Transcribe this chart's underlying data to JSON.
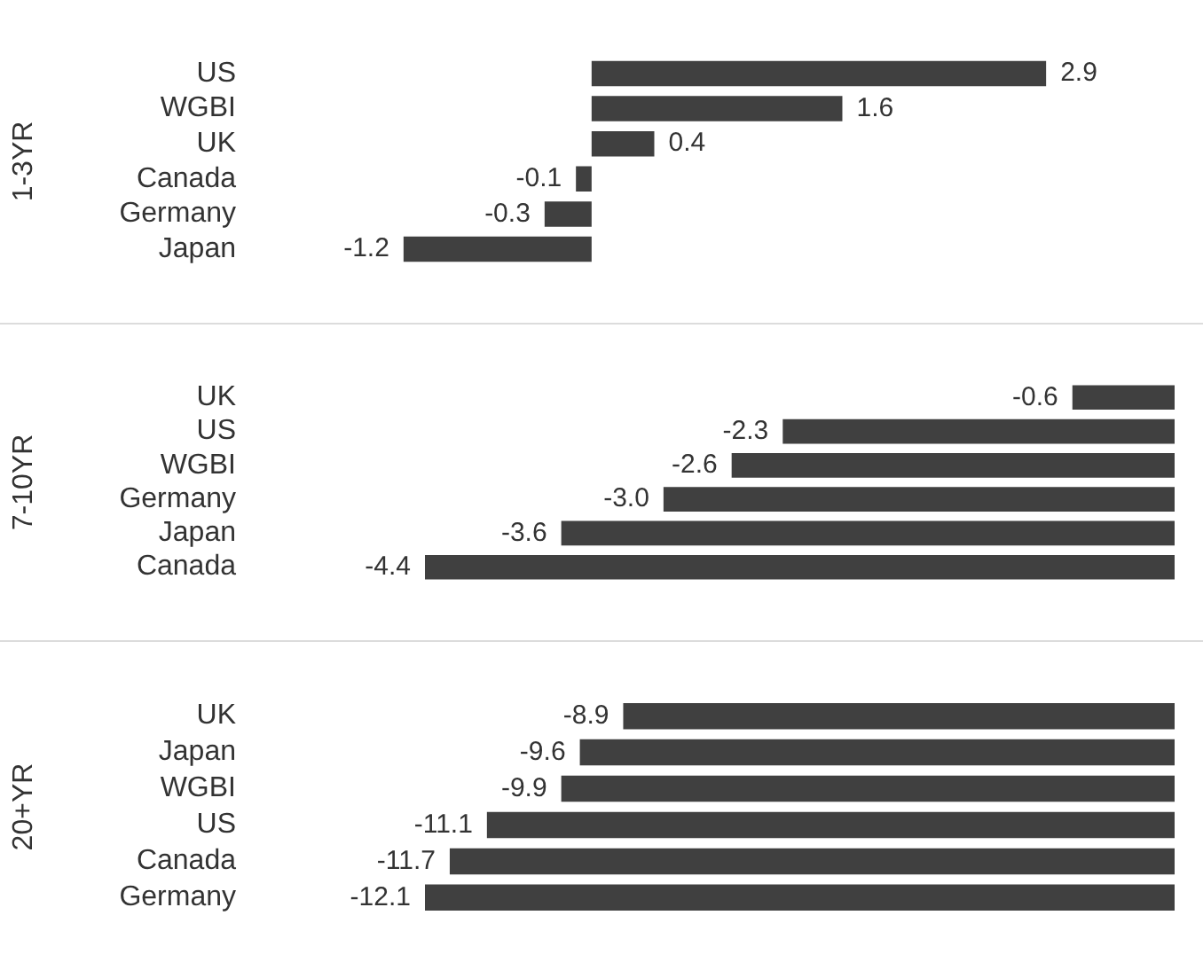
{
  "chart_data": [
    {
      "type": "bar",
      "orientation": "horizontal",
      "ylabel": "1-3YR",
      "categories": [
        "US",
        "WGBI",
        "UK",
        "Canada",
        "Germany",
        "Japan"
      ],
      "values": [
        2.9,
        1.6,
        0.4,
        -0.1,
        -0.3,
        -1.2
      ],
      "value_labels": [
        "2.9",
        "1.6",
        "0.4",
        "-0.1",
        "-0.3",
        "-1.2"
      ],
      "color": "#404040",
      "tick_labels": "y"
    },
    {
      "type": "bar",
      "orientation": "horizontal",
      "ylabel": "7-10YR",
      "categories": [
        "UK",
        "US",
        "WGBI",
        "Germany",
        "Japan",
        "Canada"
      ],
      "values": [
        -0.6,
        -2.3,
        -2.6,
        -3.0,
        -3.6,
        -4.4
      ],
      "value_labels": [
        "-0.6",
        "-2.3",
        "-2.6",
        "-3.0",
        "-3.6",
        "-4.4"
      ],
      "color": "#404040",
      "tick_labels": "y"
    },
    {
      "type": "bar",
      "orientation": "horizontal",
      "ylabel": "20+YR",
      "categories": [
        "UK",
        "Japan",
        "WGBI",
        "US",
        "Canada",
        "Germany"
      ],
      "values": [
        -8.9,
        -9.6,
        -9.9,
        -11.1,
        -11.7,
        -12.1
      ],
      "value_labels": [
        "-8.9",
        "-9.6",
        "-9.9",
        "-11.1",
        "-11.7",
        "-12.1"
      ],
      "color": "#404040",
      "tick_labels": "y"
    }
  ]
}
